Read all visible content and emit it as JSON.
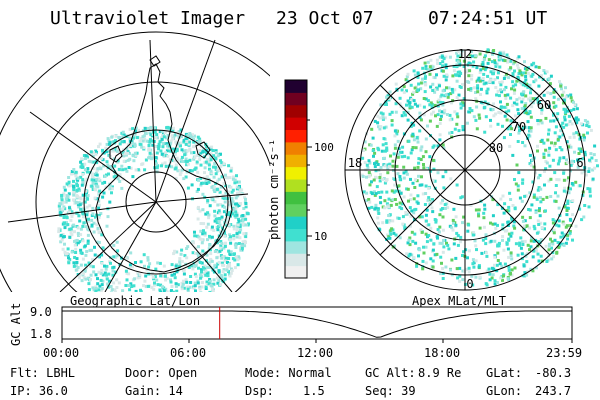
{
  "header": {
    "instrument": "Ultraviolet Imager",
    "date": "23 Oct 07",
    "time": "07:24:51 UT"
  },
  "maps": {
    "geographic_label": "Geographic Lat/Lon",
    "apex_label": "Apex MLat/MLT",
    "apex_mlt_labels": {
      "top": "12",
      "left": "18",
      "right": "6",
      "bottom": "0"
    },
    "apex_lat_labels": [
      "60",
      "70",
      "80"
    ]
  },
  "colorbar": {
    "unit": "photon cm⁻²s⁻¹",
    "ticks": [
      "100",
      "10"
    ],
    "scale": "log",
    "colors": [
      "#f0f0f0",
      "#d9e8e8",
      "#9fe5e0",
      "#40e0d0",
      "#20d0c8",
      "#60d060",
      "#40c040",
      "#b0e020",
      "#f0f000",
      "#f0b000",
      "#f08000",
      "#ff2000",
      "#d00000",
      "#a00000",
      "#700020",
      "#200030"
    ]
  },
  "timeline": {
    "axis_label": "GC Alt",
    "y_ticks": [
      "9.0",
      "1.8"
    ],
    "x_ticks": [
      "00:00",
      "06:00",
      "12:00",
      "18:00",
      "23:59"
    ],
    "marker_time": "07:24:51",
    "marker_color": "#cc0000"
  },
  "info": {
    "flt": "Flt: LBHL",
    "ip": "IP: 36.0",
    "door": "Door: Open",
    "gain": "Gain: 14",
    "mode": "Mode: Normal",
    "dsp_label": "Dsp:",
    "dsp_value": "1.5",
    "gcalt_label": "GC Alt:",
    "gcalt_value": "8.9 Re",
    "seq": "Seq: 39",
    "glat_label": "GLat:",
    "glat_value": "-80.3",
    "glon_label": "GLon:",
    "glon_value": "243.7"
  }
}
